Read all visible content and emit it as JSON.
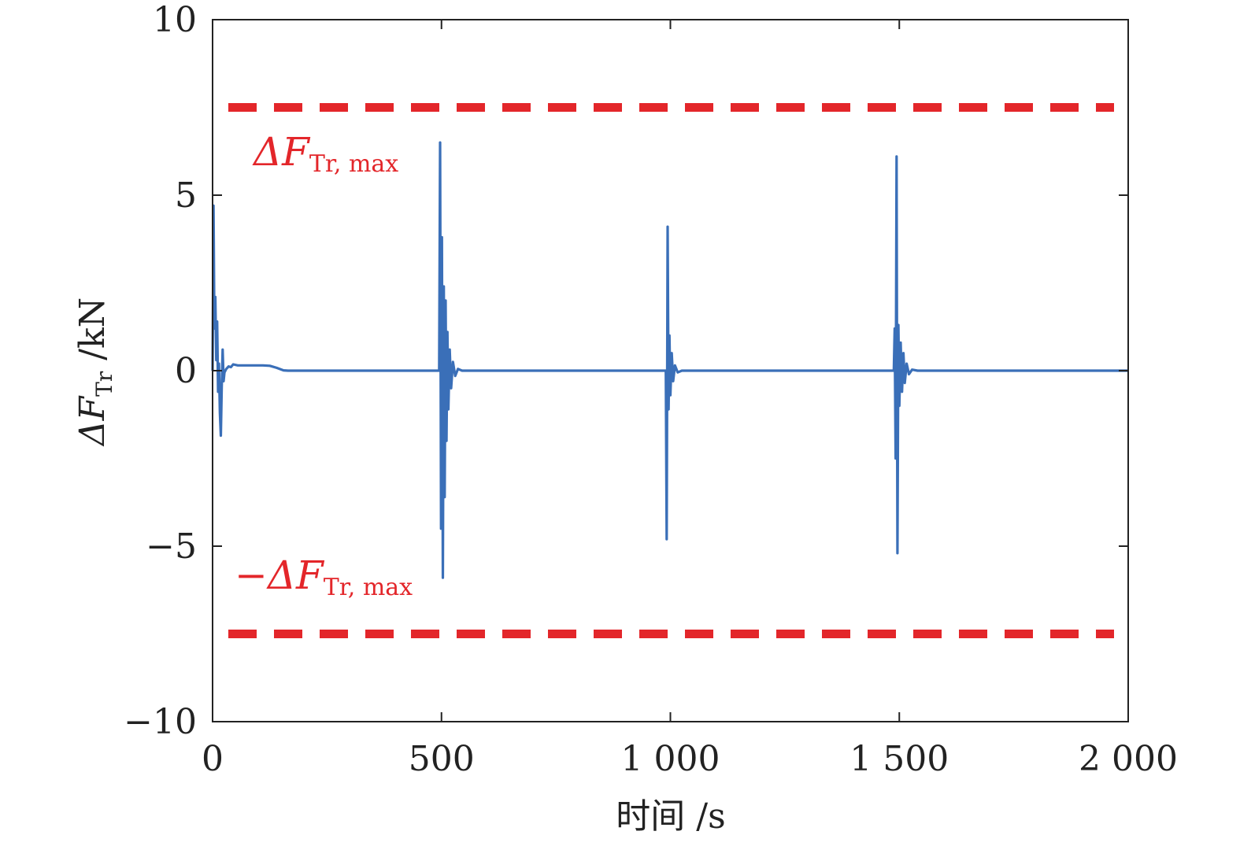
{
  "chart_data": {
    "type": "line",
    "title": "",
    "xlabel": "时间 /s",
    "ylabel": {
      "main": "ΔF",
      "sub": "Tr",
      "unit": " /kN"
    },
    "xlim": [
      0,
      2000
    ],
    "ylim": [
      -10,
      10
    ],
    "xticks": [
      0,
      500,
      1000,
      1500,
      2000
    ],
    "xtick_labels": [
      "0",
      "500",
      "1 000",
      "1 500",
      "2 000"
    ],
    "yticks": [
      -10,
      -5,
      0,
      5,
      10
    ],
    "ytick_labels": [
      "−10",
      "−5",
      "0",
      "5",
      "10"
    ],
    "grid": false,
    "colors": {
      "signal": "#3a6fb8",
      "limit": "#e3262a",
      "axis": "#222222"
    },
    "series": [
      {
        "color": "#3a6fb8",
        "points": [
          [
            0,
            0
          ],
          [
            2,
            4.7
          ],
          [
            4,
            1.2
          ],
          [
            6,
            2.1
          ],
          [
            8,
            0.3
          ],
          [
            10,
            1.4
          ],
          [
            12,
            -0.6
          ],
          [
            14,
            0.2
          ],
          [
            16,
            -1.2
          ],
          [
            18,
            -1.85
          ],
          [
            20,
            -0.5
          ],
          [
            22,
            0.6
          ],
          [
            24,
            -0.3
          ],
          [
            26,
            -0.05
          ],
          [
            30,
            0.05
          ],
          [
            35,
            0.12
          ],
          [
            40,
            0.1
          ],
          [
            45,
            0.18
          ],
          [
            55,
            0.15
          ],
          [
            70,
            0.15
          ],
          [
            90,
            0.15
          ],
          [
            110,
            0.15
          ],
          [
            125,
            0.14
          ],
          [
            140,
            0.08
          ],
          [
            155,
            0.01
          ],
          [
            165,
            0
          ],
          [
            300,
            0
          ],
          [
            495,
            0
          ],
          [
            497,
            6.5
          ],
          [
            499,
            -4.5
          ],
          [
            501,
            3.8
          ],
          [
            503,
            -5.9
          ],
          [
            505,
            2.4
          ],
          [
            507,
            -3.6
          ],
          [
            509,
            2.0
          ],
          [
            511,
            -2.0
          ],
          [
            513,
            1.1
          ],
          [
            515,
            -1.1
          ],
          [
            518,
            0.6
          ],
          [
            521,
            -0.5
          ],
          [
            525,
            0.25
          ],
          [
            530,
            -0.15
          ],
          [
            536,
            0.05
          ],
          [
            545,
            0
          ],
          [
            990,
            0
          ],
          [
            992,
            -4.8
          ],
          [
            994,
            4.1
          ],
          [
            996,
            -1.1
          ],
          [
            998,
            1.0
          ],
          [
            1000,
            -0.7
          ],
          [
            1003,
            0.5
          ],
          [
            1006,
            -0.3
          ],
          [
            1010,
            0.15
          ],
          [
            1016,
            -0.05
          ],
          [
            1025,
            0
          ],
          [
            1488,
            0
          ],
          [
            1490,
            1.2
          ],
          [
            1492,
            -2.5
          ],
          [
            1494,
            6.1
          ],
          [
            1496,
            -5.2
          ],
          [
            1498,
            1.3
          ],
          [
            1500,
            -1.0
          ],
          [
            1503,
            0.8
          ],
          [
            1506,
            -0.6
          ],
          [
            1509,
            0.5
          ],
          [
            1512,
            -0.35
          ],
          [
            1516,
            0.2
          ],
          [
            1521,
            -0.1
          ],
          [
            1528,
            0.03
          ],
          [
            1540,
            0
          ],
          [
            2000,
            0
          ]
        ]
      }
    ],
    "limits": [
      {
        "value": 7.5,
        "label": {
          "main": "ΔF",
          "sub": "Tr, max"
        }
      },
      {
        "value": -7.5,
        "label": {
          "main": "−ΔF",
          "sub": "Tr, max"
        }
      }
    ]
  }
}
